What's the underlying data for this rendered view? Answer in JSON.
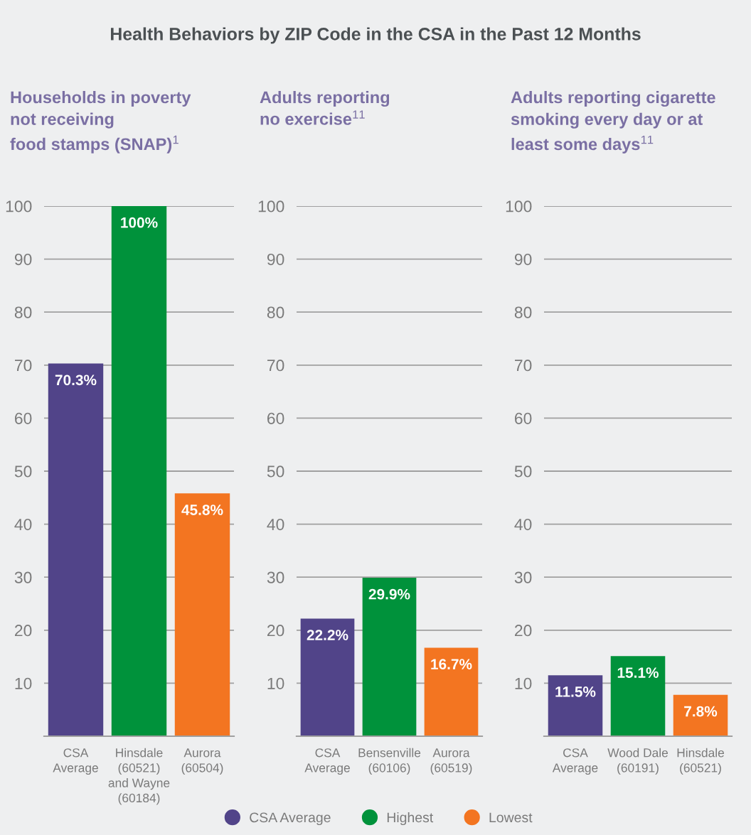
{
  "chart_data": [
    {
      "type": "bar",
      "title": "Households in poverty\nnot receiving\nfood stamps (SNAP)$^{1}$",
      "annotations": [
        "Health Behaviors by ZIP Code in the CSA in the Past 12 Months"
      ],
      "categories": [
        "CSA\nAverage",
        "Hinsdale\n(60521)\nand Wayne\n(60184)",
        "Aurora\n(60504)"
      ],
      "stacked": true,
      "series": [
        {
          "name": "CSA Average",
          "color": "#514489",
          "values": [
            70.3,
            null,
            null
          ],
          "value_labels": [
            "70.3%",
            null,
            null
          ]
        },
        {
          "name": "Highest",
          "color": "#00923b",
          "values": [
            null,
            100,
            null
          ],
          "value_labels": [
            null,
            "100%",
            null
          ]
        },
        {
          "name": "Lowest",
          "color": "#f37521",
          "values": [
            null,
            null,
            45.8
          ],
          "value_labels": [
            null,
            null,
            "45.8%"
          ]
        }
      ],
      "ylim": [
        0,
        100
      ],
      "yticks": [
        10,
        20,
        30,
        40,
        50,
        60,
        70,
        80,
        90,
        100
      ],
      "grid": "y",
      "legend": "bottom"
    },
    {
      "type": "bar",
      "title": "Adults reporting\nno exercise$^{11}$",
      "categories": [
        "CSA\nAverage",
        "Bensenville\n(60106)",
        "Aurora\n(60519)"
      ],
      "stacked": true,
      "series": [
        {
          "color": "#514489",
          "values": [
            22.2,
            null,
            null
          ],
          "value_labels": [
            "22.2%",
            null,
            null
          ]
        },
        {
          "color": "#00923b",
          "values": [
            null,
            29.9,
            null
          ],
          "value_labels": [
            null,
            "29.9%",
            null
          ]
        },
        {
          "color": "#f37521",
          "values": [
            null,
            null,
            16.7
          ],
          "value_labels": [
            null,
            null,
            "16.7%"
          ]
        }
      ],
      "ylim": [
        0,
        100
      ],
      "yticks": [
        10,
        20,
        30,
        40,
        50,
        60,
        70,
        80,
        90,
        100
      ],
      "grid": "y"
    },
    {
      "type": "bar",
      "title": "Adults reporting cigarette\nsmoking every day or at\nleast some days$^{11}$",
      "categories": [
        "CSA\nAverage",
        "Wood Dale\n(60191)",
        "Hinsdale\n(60521)"
      ],
      "stacked": true,
      "series": [
        {
          "color": "#514489",
          "values": [
            11.5,
            null,
            null
          ],
          "value_labels": [
            "11.5%",
            null,
            null
          ]
        },
        {
          "color": "#00923b",
          "values": [
            null,
            15.1,
            null
          ],
          "value_labels": [
            null,
            "15.1%",
            null
          ]
        },
        {
          "color": "#f37521",
          "values": [
            null,
            null,
            7.8
          ],
          "value_labels": [
            null,
            null,
            "7.8%"
          ]
        }
      ],
      "ylim": [
        0,
        100
      ],
      "yticks": [
        10,
        20,
        30,
        40,
        50,
        60,
        70,
        80,
        90,
        100
      ],
      "grid": "y"
    }
  ]
}
